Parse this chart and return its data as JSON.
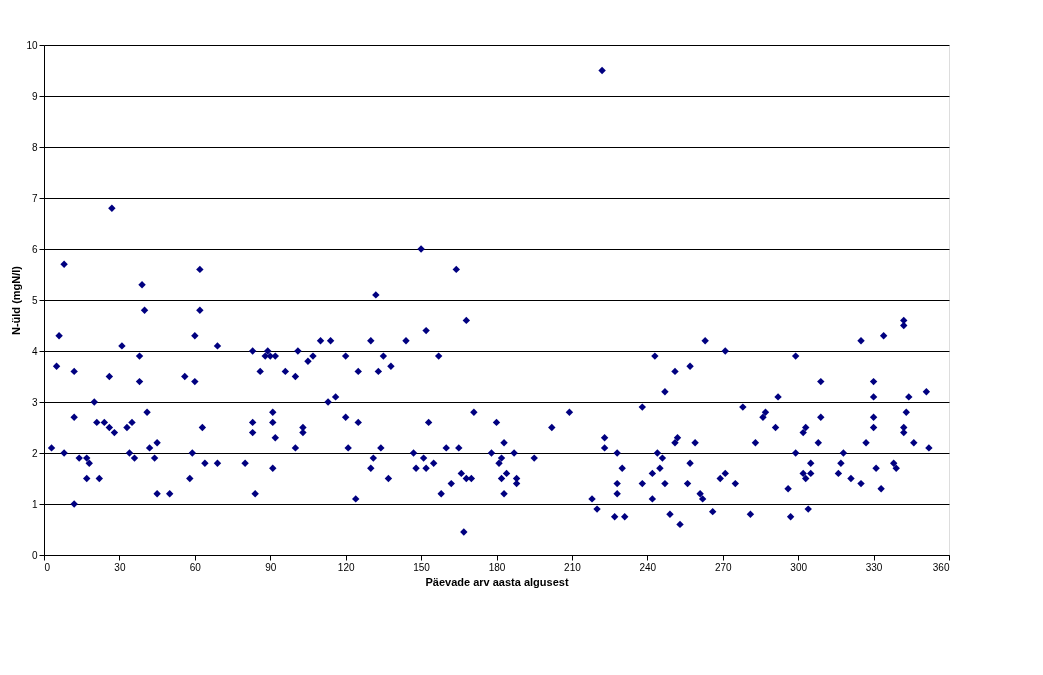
{
  "chart_data": {
    "type": "scatter",
    "xlabel": "Päevade arv aasta algusest",
    "ylabel": "N-üld (mgN/l)",
    "xlim": [
      0,
      360
    ],
    "xticks": [
      0,
      30,
      60,
      90,
      120,
      150,
      180,
      210,
      240,
      270,
      300,
      330,
      360
    ],
    "ylim": [
      0,
      10
    ],
    "yticks": [
      0,
      1,
      2,
      3,
      4,
      5,
      6,
      7,
      8,
      9,
      10
    ],
    "grid": "y",
    "marker": "diamond",
    "legend": false,
    "series": [
      {
        "color": "#000080",
        "x": [
          3,
          5,
          6,
          8,
          8,
          12,
          12,
          12,
          14,
          17,
          17,
          18,
          20,
          21,
          22,
          24,
          26,
          26,
          27,
          28,
          31,
          33,
          34,
          35,
          36,
          38,
          38,
          39,
          40,
          41,
          42,
          44,
          45,
          45,
          50,
          56,
          58,
          59,
          60,
          60,
          62,
          62,
          63,
          64,
          69,
          69,
          80,
          83,
          83,
          83,
          84,
          86,
          88,
          89,
          90,
          91,
          91,
          91,
          92,
          92,
          96,
          100,
          101,
          100,
          103,
          103,
          105,
          107,
          110,
          113,
          114,
          116,
          120,
          120,
          121,
          124,
          125,
          125,
          130,
          130,
          131,
          132,
          133,
          134,
          135,
          137,
          138,
          144,
          147,
          148,
          150,
          151,
          152,
          152,
          153,
          155,
          157,
          158,
          160,
          162,
          164,
          165,
          166,
          167,
          168,
          168,
          170,
          171,
          178,
          180,
          181,
          182,
          182,
          183,
          183,
          184,
          187,
          188,
          188,
          195,
          202,
          209,
          218,
          220,
          222,
          223,
          223,
          227,
          228,
          228,
          228,
          230,
          231,
          238,
          238,
          242,
          242,
          243,
          244,
          245,
          246,
          247,
          247,
          249,
          251,
          251,
          252,
          253,
          256,
          257,
          257,
          259,
          261,
          262,
          263,
          266,
          269,
          271,
          271,
          275,
          278,
          281,
          283,
          286,
          287,
          291,
          292,
          296,
          297,
          299,
          299,
          302,
          302,
          303,
          303,
          304,
          305,
          305,
          308,
          309,
          309,
          316,
          317,
          318,
          321,
          325,
          325,
          327,
          330,
          330,
          330,
          330,
          331,
          333,
          334,
          338,
          339,
          342,
          342,
          342,
          342,
          343,
          344,
          346,
          351,
          352
        ],
        "values": [
          2.1,
          3.7,
          4.3,
          5.7,
          2.0,
          1.0,
          3.6,
          2.7,
          1.9,
          1.5,
          1.9,
          1.8,
          3.0,
          2.6,
          1.5,
          2.6,
          2.5,
          3.5,
          6.8,
          2.4,
          4.1,
          2.5,
          2.0,
          2.6,
          1.9,
          3.9,
          3.4,
          5.3,
          4.8,
          2.8,
          2.1,
          1.9,
          1.2,
          2.2,
          1.2,
          3.5,
          1.5,
          2.0,
          4.3,
          3.4,
          4.8,
          5.6,
          2.5,
          1.8,
          4.1,
          1.8,
          1.8,
          4.0,
          2.4,
          2.6,
          1.2,
          3.6,
          3.9,
          4.0,
          3.9,
          2.8,
          2.6,
          1.7,
          2.3,
          3.9,
          3.6,
          3.5,
          4.0,
          2.1,
          2.5,
          2.4,
          3.8,
          3.9,
          4.2,
          3.0,
          4.2,
          3.1,
          3.9,
          2.7,
          2.1,
          1.1,
          3.6,
          2.6,
          1.7,
          4.2,
          1.9,
          5.1,
          3.6,
          2.1,
          3.9,
          1.5,
          3.7,
          4.2,
          2.0,
          1.7,
          6.0,
          1.9,
          4.4,
          1.7,
          2.6,
          1.8,
          3.9,
          1.2,
          2.1,
          1.4,
          5.6,
          2.1,
          1.6,
          0.45,
          1.5,
          4.6,
          1.5,
          2.8,
          2.0,
          2.6,
          1.8,
          1.9,
          1.5,
          1.2,
          2.2,
          1.6,
          2.0,
          1.4,
          1.5,
          1.9,
          2.5,
          2.8,
          1.1,
          0.9,
          9.5,
          2.3,
          2.1,
          0.75,
          1.4,
          1.2,
          2.0,
          1.7,
          0.75,
          2.9,
          1.4,
          1.1,
          1.6,
          3.9,
          2.0,
          1.7,
          1.9,
          3.2,
          1.4,
          0.8,
          2.2,
          3.6,
          2.3,
          0.6,
          1.4,
          3.7,
          1.8,
          2.2,
          1.2,
          1.1,
          4.2,
          0.85,
          1.5,
          4.0,
          1.6,
          1.4,
          2.9,
          0.8,
          2.2,
          2.7,
          2.8,
          2.5,
          3.1,
          1.3,
          0.75,
          3.9,
          2.0,
          2.4,
          1.6,
          2.5,
          1.5,
          0.9,
          1.8,
          1.6,
          2.2,
          2.7,
          3.4,
          1.6,
          1.8,
          2.0,
          1.5,
          4.2,
          1.4,
          2.2,
          3.1,
          2.7,
          3.4,
          2.5,
          1.7,
          1.3,
          4.3,
          1.8,
          1.7,
          4.6,
          4.5,
          2.5,
          2.4,
          2.8,
          3.1,
          2.2,
          3.2,
          2.1
        ]
      }
    ]
  }
}
